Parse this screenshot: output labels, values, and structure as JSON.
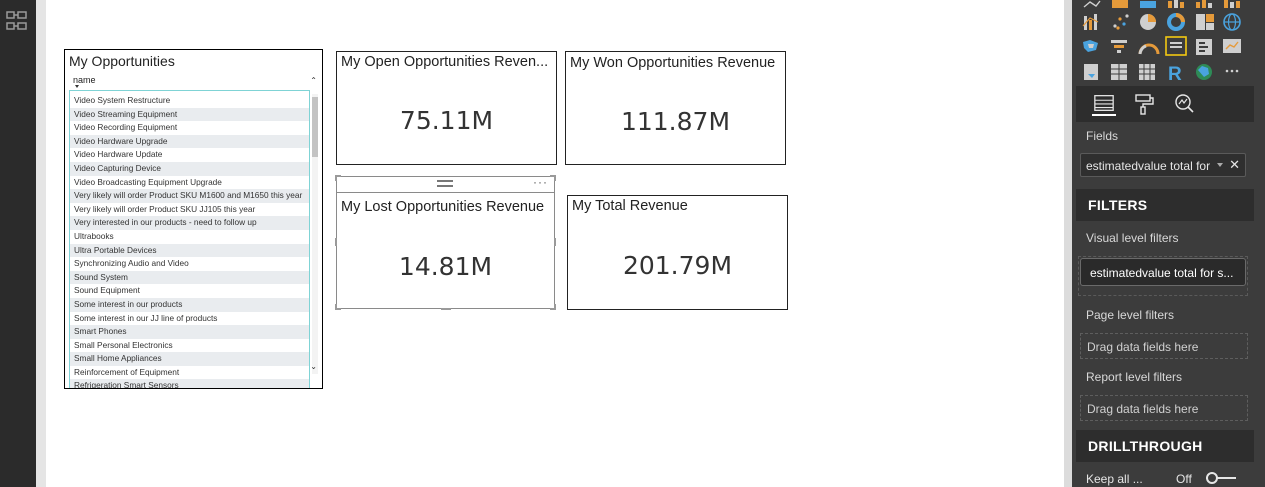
{
  "slicer": {
    "title": "My Opportunities",
    "field": "name",
    "items": [
      "Video System Restructure",
      "Video Streaming Equipment",
      "Video Recording Equipment",
      "Video Hardware Upgrade",
      "Video Hardware Update",
      "Video Capturing Device",
      "Video Broadcasting Equipment Upgrade",
      "Very likely will order Product SKU M1600 and M1650 this year",
      "Very likely will order Product SKU JJ105 this year",
      "Very interested in our products - need to follow up",
      "Ultrabooks",
      "Ultra Portable Devices",
      "Synchronizing Audio and Video",
      "Sound System",
      "Sound Equipment",
      "Some interest in our products",
      "Some interest in our JJ line of products",
      "Smart Phones",
      "Small Personal Electronics",
      "Small Home Appliances",
      "Reinforcement of Equipment",
      "Refrigeration Smart Sensors"
    ]
  },
  "cards": {
    "open": {
      "title": "My Open Opportunities Reven...",
      "value": "75.11M"
    },
    "won": {
      "title": "My Won Opportunities Revenue",
      "value": "111.87M"
    },
    "lost": {
      "title": "My Lost Opportunities Revenue",
      "value": "14.81M"
    },
    "total": {
      "title": "My Total Revenue",
      "value": "201.79M"
    }
  },
  "panel": {
    "fields_label": "Fields",
    "field_well_value": "estimatedvalue total for",
    "filters_header": "FILTERS",
    "visual_filters_label": "Visual level filters",
    "visual_filter_chip": "estimatedvalue total for s...",
    "page_filters_label": "Page level filters",
    "page_drop": "Drag data fields here",
    "report_filters_label": "Report level filters",
    "report_drop": "Drag data fields here",
    "drillthrough_header": "DRILLTHROUGH",
    "keep_all_label": "Keep all ...",
    "keep_all_state": "Off"
  },
  "colors": {
    "panel_bg": "#3c3c3c",
    "panel_header_bg": "#2d2d2d",
    "slicer_border_accent": "#7fd3d5",
    "viz_icon_accent": "#f2c811",
    "viz_icon_blue": "#4aa3df"
  },
  "icons": {
    "left_rail": "relationships-icon",
    "tabs": [
      "fields-tab-icon",
      "format-paintroller-icon",
      "analytics-magnifier-icon"
    ]
  }
}
